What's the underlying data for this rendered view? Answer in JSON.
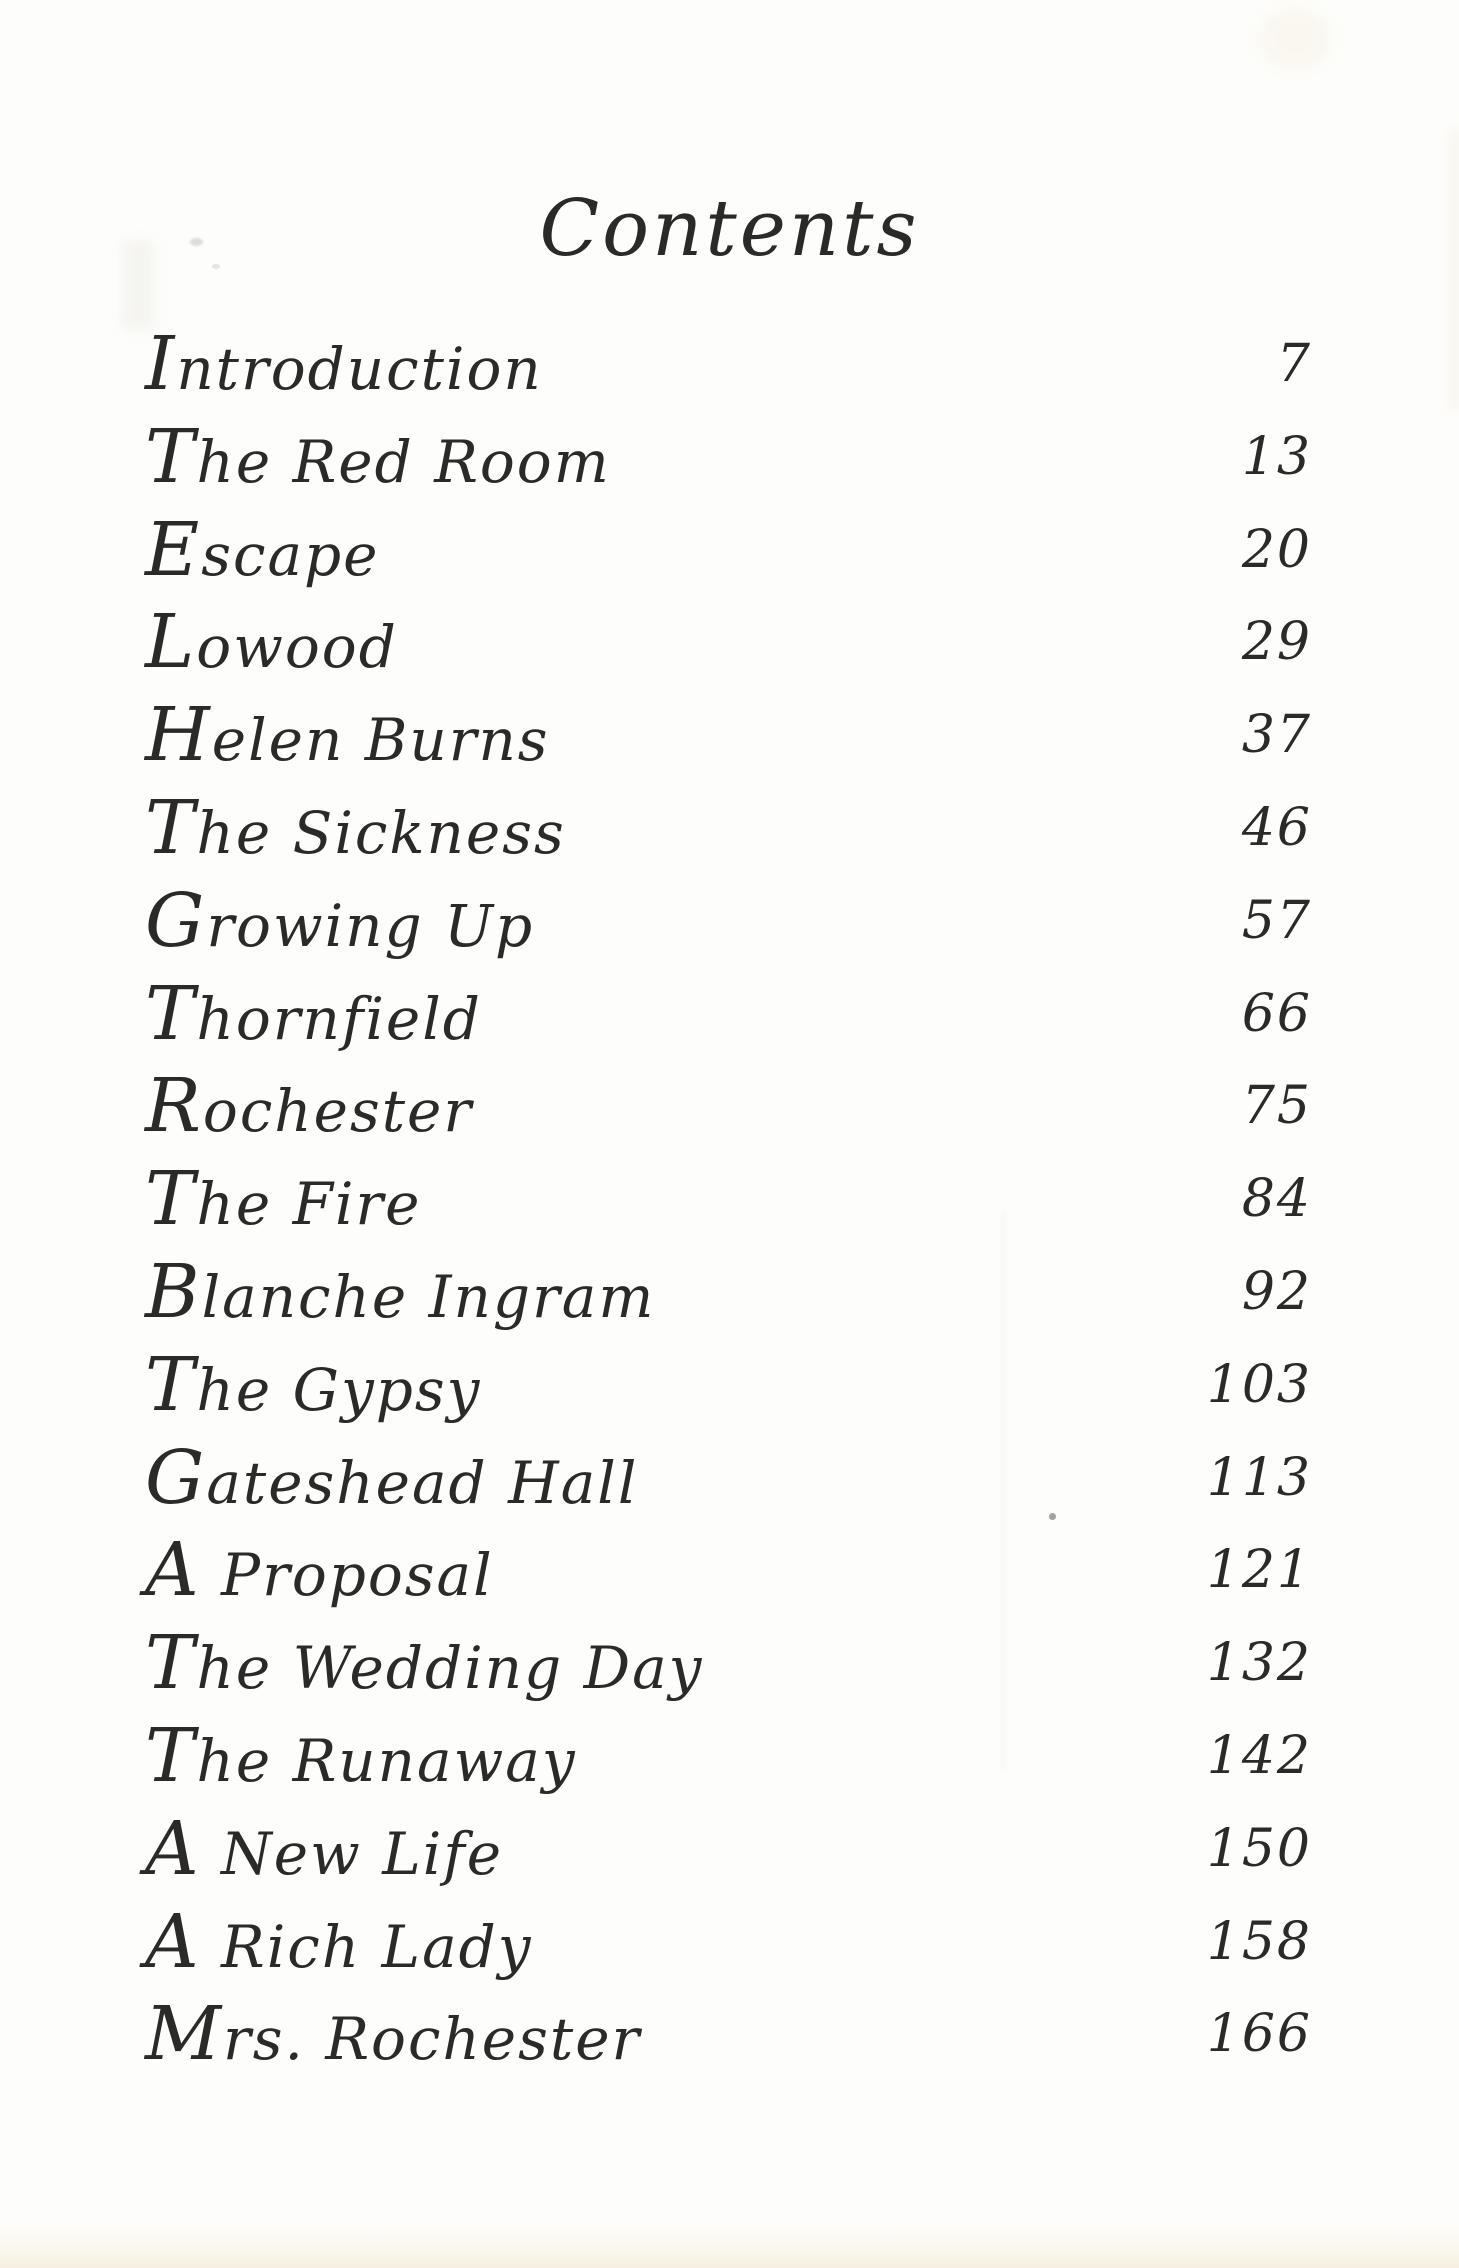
{
  "header": {
    "title": "Contents"
  },
  "colors": {
    "ink": "#2b2a28",
    "paper": "#fdfdfb"
  },
  "toc": {
    "entries": [
      {
        "title": "Introduction",
        "page": "7"
      },
      {
        "title": "The Red Room",
        "page": "13"
      },
      {
        "title": "Escape",
        "page": "20"
      },
      {
        "title": "Lowood",
        "page": "29"
      },
      {
        "title": "Helen Burns",
        "page": "37"
      },
      {
        "title": "The Sickness",
        "page": "46"
      },
      {
        "title": "Growing Up",
        "page": "57"
      },
      {
        "title": "Thornfield",
        "page": "66"
      },
      {
        "title": "Rochester",
        "page": "75"
      },
      {
        "title": "The Fire",
        "page": "84"
      },
      {
        "title": "Blanche Ingram",
        "page": "92"
      },
      {
        "title": "The Gypsy",
        "page": "103"
      },
      {
        "title": "Gateshead Hall",
        "page": "113"
      },
      {
        "title": "A Proposal",
        "page": "121"
      },
      {
        "title": "The Wedding Day",
        "page": "132"
      },
      {
        "title": "The Runaway",
        "page": "142"
      },
      {
        "title": "A New Life",
        "page": "150"
      },
      {
        "title": "A Rich Lady",
        "page": "158"
      },
      {
        "title": "Mrs. Rochester",
        "page": "166"
      }
    ]
  }
}
